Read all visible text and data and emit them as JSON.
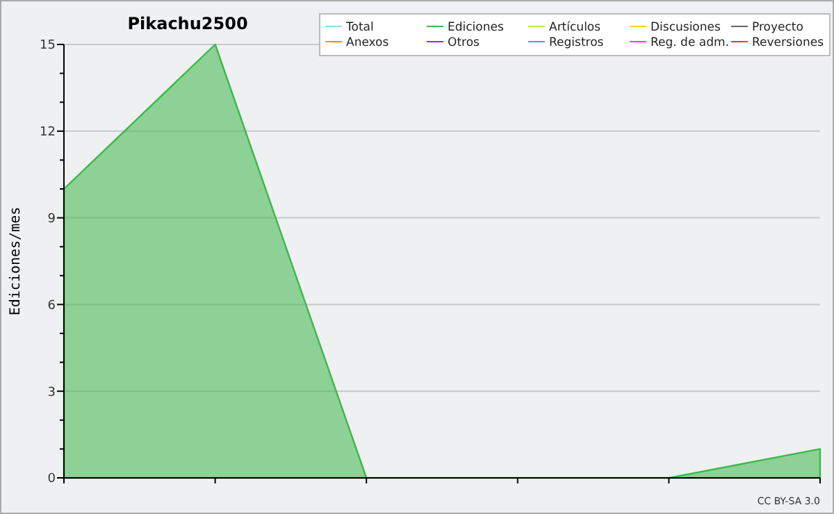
{
  "chart_data": {
    "type": "area",
    "title": "Pikachu2500",
    "ylabel": "Ediciones/mes",
    "categories": [
      null,
      null,
      null,
      null,
      null,
      null
    ],
    "series": [
      {
        "name": "Total",
        "color": "#88e0e0",
        "values": [
          null,
          null,
          null,
          null,
          null,
          null
        ]
      },
      {
        "name": "Ediciones",
        "color": "#3cb84a",
        "values": [
          10,
          15,
          0,
          0,
          0,
          1
        ]
      },
      {
        "name": "Artículos",
        "color": "#bbee33",
        "values": [
          null,
          null,
          null,
          null,
          null,
          null
        ]
      },
      {
        "name": "Discusiones",
        "color": "#ffcc33",
        "values": [
          null,
          null,
          null,
          null,
          null,
          null
        ]
      },
      {
        "name": "Proyecto",
        "color": "#666666",
        "values": [
          null,
          null,
          null,
          null,
          null,
          null
        ]
      },
      {
        "name": "Anexos",
        "color": "#ff8833",
        "values": [
          null,
          null,
          null,
          null,
          null,
          null
        ]
      },
      {
        "name": "Otros",
        "color": "#8833dd",
        "values": [
          null,
          null,
          null,
          null,
          null,
          null
        ]
      },
      {
        "name": "Registros",
        "color": "#6688ff",
        "values": [
          null,
          null,
          null,
          null,
          null,
          null
        ]
      },
      {
        "name": "Reg. de adm.",
        "color": "#dd44ee",
        "values": [
          null,
          null,
          null,
          null,
          null,
          null
        ]
      },
      {
        "name": "Reversiones",
        "color": "#ff3333",
        "values": [
          null,
          null,
          null,
          null,
          null,
          null
        ]
      }
    ],
    "ylim": [
      0,
      15
    ],
    "yticks": [
      0,
      {
        "value": 1,
        "label": null
      },
      {
        "value": 2,
        "label": null
      },
      3,
      {
        "value": 4,
        "label": null
      },
      {
        "value": 5,
        "label": null
      },
      6,
      {
        "value": 7,
        "label": null
      },
      {
        "value": 8,
        "label": null
      },
      9,
      {
        "value": 10,
        "label": null
      },
      {
        "value": 11,
        "label": null
      },
      12,
      {
        "value": 13,
        "label": null
      },
      {
        "value": 14,
        "label": null
      },
      15
    ],
    "grid": "y",
    "legend": "top right",
    "tick_labels": "y",
    "annotations": [
      "CC BY-SA 3.0"
    ]
  }
}
